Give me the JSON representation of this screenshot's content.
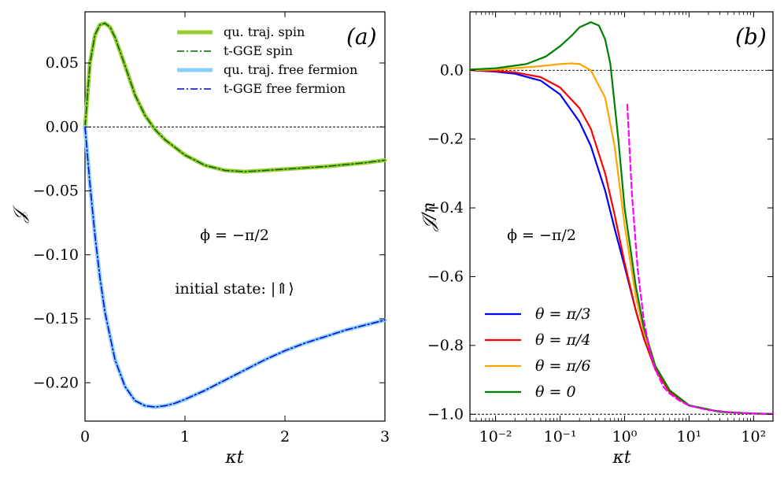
{
  "chart_data": [
    {
      "panel_label": "(a)",
      "type": "line",
      "xlabel": "κt",
      "ylabel": "𝒥",
      "xlim": [
        0,
        3
      ],
      "ylim": [
        -0.23,
        0.09
      ],
      "xticks": [
        0,
        1,
        2,
        3
      ],
      "xtick_labels": [
        "0",
        "1",
        "2",
        "3"
      ],
      "yticks": [
        0.05,
        0.0,
        -0.05,
        -0.1,
        -0.15,
        -0.2
      ],
      "ytick_labels": [
        "0.05",
        "0.00",
        "−0.05",
        "−0.10",
        "−0.15",
        "−0.20"
      ],
      "reference_lines": [
        {
          "axis": "y",
          "value": 0.0,
          "style": "dashed"
        }
      ],
      "annotations": [
        "ϕ = −π/2",
        "initial state: |⇑⟩"
      ],
      "legend_location": "top-right",
      "series": [
        {
          "name": "qu. traj. spin",
          "color": "#9acd32",
          "style": "solid-thick",
          "x": [
            0,
            0.05,
            0.1,
            0.15,
            0.2,
            0.25,
            0.3,
            0.4,
            0.5,
            0.6,
            0.7,
            0.8,
            1.0,
            1.2,
            1.4,
            1.6,
            1.8,
            2.0,
            2.4,
            2.8,
            3.0
          ],
          "y": [
            0.0,
            0.05,
            0.072,
            0.08,
            0.081,
            0.078,
            0.07,
            0.048,
            0.025,
            0.009,
            -0.002,
            -0.01,
            -0.022,
            -0.03,
            -0.034,
            -0.035,
            -0.034,
            -0.033,
            -0.031,
            -0.028,
            -0.026
          ]
        },
        {
          "name": "t-GGE  spin",
          "color": "#006400",
          "style": "dashdot",
          "x": [
            0,
            0.05,
            0.1,
            0.15,
            0.2,
            0.25,
            0.3,
            0.4,
            0.5,
            0.6,
            0.7,
            0.8,
            1.0,
            1.2,
            1.4,
            1.6,
            1.8,
            2.0,
            2.4,
            2.8,
            3.0
          ],
          "y": [
            0.0,
            0.05,
            0.072,
            0.08,
            0.081,
            0.078,
            0.07,
            0.048,
            0.025,
            0.009,
            -0.002,
            -0.01,
            -0.022,
            -0.03,
            -0.034,
            -0.035,
            -0.034,
            -0.033,
            -0.031,
            -0.028,
            -0.026
          ]
        },
        {
          "name": "qu. traj. free fermion",
          "color": "#87cefa",
          "style": "solid-thick",
          "x": [
            0,
            0.05,
            0.1,
            0.15,
            0.2,
            0.3,
            0.4,
            0.5,
            0.6,
            0.7,
            0.8,
            0.9,
            1.0,
            1.2,
            1.4,
            1.6,
            1.8,
            2.0,
            2.2,
            2.4,
            2.6,
            2.8,
            3.0
          ],
          "y": [
            0.0,
            -0.045,
            -0.085,
            -0.118,
            -0.145,
            -0.182,
            -0.203,
            -0.214,
            -0.218,
            -0.219,
            -0.218,
            -0.216,
            -0.213,
            -0.206,
            -0.198,
            -0.19,
            -0.182,
            -0.175,
            -0.169,
            -0.164,
            -0.159,
            -0.155,
            -0.151
          ]
        },
        {
          "name": "t-GGE  free fermion",
          "color": "#0000cd",
          "style": "dashdot",
          "x": [
            0,
            0.05,
            0.1,
            0.15,
            0.2,
            0.3,
            0.4,
            0.5,
            0.6,
            0.7,
            0.8,
            0.9,
            1.0,
            1.2,
            1.4,
            1.6,
            1.8,
            2.0,
            2.2,
            2.4,
            2.6,
            2.8,
            3.0
          ],
          "y": [
            0.0,
            -0.045,
            -0.085,
            -0.118,
            -0.145,
            -0.182,
            -0.203,
            -0.214,
            -0.218,
            -0.219,
            -0.218,
            -0.216,
            -0.213,
            -0.206,
            -0.198,
            -0.19,
            -0.182,
            -0.175,
            -0.169,
            -0.164,
            -0.159,
            -0.155,
            -0.151
          ]
        }
      ]
    },
    {
      "panel_label": "(b)",
      "type": "line",
      "xlabel": "κt",
      "ylabel": "𝒥/n",
      "xscale": "log",
      "xlim": [
        0.004,
        200
      ],
      "ylim": [
        -1.02,
        0.17
      ],
      "xticks": [
        0.01,
        0.1,
        1,
        10,
        100
      ],
      "xtick_labels": [
        "10⁻²",
        "10⁻¹",
        "10⁰",
        "10¹",
        "10²"
      ],
      "yticks": [
        0.0,
        -0.2,
        -0.4,
        -0.6,
        -0.8,
        -1.0
      ],
      "ytick_labels": [
        "0.0",
        "−0.2",
        "−0.4",
        "−0.6",
        "−0.8",
        "−1.0"
      ],
      "reference_lines": [
        {
          "axis": "y",
          "value": 0.0,
          "style": "dashed"
        },
        {
          "axis": "y",
          "value": -1.0,
          "style": "dashed"
        }
      ],
      "annotations": [
        "ϕ = −π/2"
      ],
      "legend_location": "bottom-left",
      "series": [
        {
          "name": "θ = π/3",
          "color": "#0000ff",
          "x": [
            0.004,
            0.01,
            0.02,
            0.05,
            0.1,
            0.2,
            0.3,
            0.5,
            0.7,
            1.0,
            1.5,
            2,
            3,
            5,
            10,
            30,
            100,
            200
          ],
          "y": [
            0.0,
            -0.004,
            -0.01,
            -0.03,
            -0.07,
            -0.15,
            -0.22,
            -0.35,
            -0.46,
            -0.57,
            -0.7,
            -0.78,
            -0.87,
            -0.935,
            -0.975,
            -0.993,
            -0.998,
            -0.999
          ]
        },
        {
          "name": "θ = π/4",
          "color": "#ff0000",
          "x": [
            0.004,
            0.01,
            0.02,
            0.05,
            0.1,
            0.2,
            0.3,
            0.5,
            0.7,
            1.0,
            1.5,
            2,
            3,
            5,
            10,
            30,
            100,
            200
          ],
          "y": [
            0.0,
            -0.002,
            -0.006,
            -0.02,
            -0.05,
            -0.11,
            -0.17,
            -0.3,
            -0.42,
            -0.56,
            -0.7,
            -0.78,
            -0.87,
            -0.935,
            -0.975,
            -0.993,
            -0.998,
            -0.999
          ]
        },
        {
          "name": "θ = π/6",
          "color": "#ffa500",
          "x": [
            0.004,
            0.01,
            0.05,
            0.1,
            0.15,
            0.2,
            0.3,
            0.5,
            0.7,
            1.0,
            1.5,
            2,
            3,
            5,
            10,
            30,
            100,
            200
          ],
          "y": [
            0.0,
            0.002,
            0.012,
            0.018,
            0.02,
            0.018,
            0.0,
            -0.08,
            -0.22,
            -0.45,
            -0.66,
            -0.76,
            -0.86,
            -0.93,
            -0.974,
            -0.993,
            -0.998,
            -0.999
          ]
        },
        {
          "name": "θ = 0",
          "color": "#008000",
          "x": [
            0.004,
            0.01,
            0.03,
            0.06,
            0.1,
            0.15,
            0.2,
            0.3,
            0.4,
            0.5,
            0.6,
            0.8,
            1.0,
            1.5,
            2,
            3,
            5,
            10,
            30,
            100,
            200
          ],
          "y": [
            0.002,
            0.006,
            0.018,
            0.04,
            0.07,
            0.1,
            0.125,
            0.14,
            0.13,
            0.09,
            0.02,
            -0.2,
            -0.4,
            -0.63,
            -0.75,
            -0.86,
            -0.93,
            -0.974,
            -0.993,
            -0.998,
            -0.999
          ]
        },
        {
          "name": "",
          "color": "#ff00ff",
          "style": "dashed",
          "x": [
            1.1,
            1.3,
            1.6,
            2,
            2.5,
            3,
            4,
            5,
            7,
            10,
            20,
            50,
            100,
            200
          ],
          "y": [
            -0.1,
            -0.36,
            -0.58,
            -0.73,
            -0.82,
            -0.87,
            -0.92,
            -0.94,
            -0.96,
            -0.975,
            -0.988,
            -0.995,
            -0.998,
            -0.999
          ]
        }
      ]
    }
  ]
}
